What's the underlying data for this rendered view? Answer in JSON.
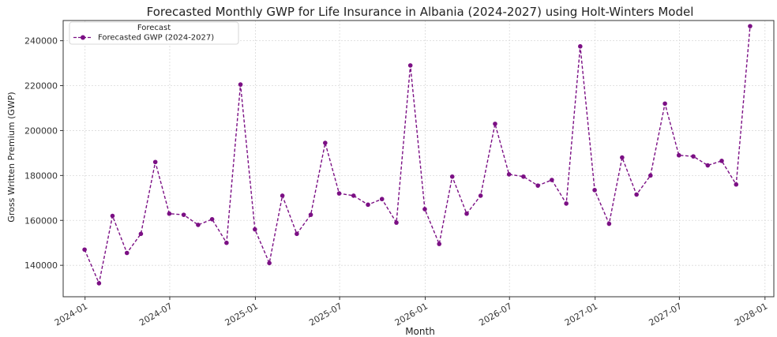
{
  "colors": {
    "series": "#7b0f84",
    "grid": "#d9d9d9",
    "axis": "#333333",
    "background": "#ffffff"
  },
  "chart_data": {
    "type": "line",
    "title": "Forecasted Monthly GWP for Life Insurance in Albania (2024-2027) using Holt-Winters Model",
    "xlabel": "Month",
    "ylabel": "Gross Written Premium (GWP)",
    "x_axis_type": "date",
    "xlim": [
      "2023-11-15",
      "2028-01-20"
    ],
    "ylim": [
      126000,
      249000
    ],
    "grid": true,
    "legend": {
      "title": "Forecast",
      "placement": "upper-left"
    },
    "x_ticks": [
      "2024-01",
      "2024-07",
      "2025-01",
      "2025-07",
      "2026-01",
      "2026-07",
      "2027-01",
      "2027-07",
      "2028-01"
    ],
    "y_ticks": [
      140000,
      160000,
      180000,
      200000,
      220000,
      240000
    ],
    "series": [
      {
        "name": "Forecasted GWP (2024-2027)",
        "color": "#7b0f84",
        "line_style": "dashed",
        "marker": "circle",
        "x": [
          "2023-12-31",
          "2024-01-31",
          "2024-02-29",
          "2024-03-31",
          "2024-04-30",
          "2024-05-31",
          "2024-06-30",
          "2024-07-31",
          "2024-08-31",
          "2024-09-30",
          "2024-10-31",
          "2024-11-30",
          "2024-12-31",
          "2025-01-31",
          "2025-02-28",
          "2025-03-31",
          "2025-04-30",
          "2025-05-31",
          "2025-06-30",
          "2025-07-31",
          "2025-08-31",
          "2025-09-30",
          "2025-10-31",
          "2025-11-30",
          "2025-12-31",
          "2026-01-31",
          "2026-02-28",
          "2026-03-31",
          "2026-04-30",
          "2026-05-31",
          "2026-06-30",
          "2026-07-31",
          "2026-08-31",
          "2026-09-30",
          "2026-10-31",
          "2026-11-30",
          "2026-12-31",
          "2027-01-31",
          "2027-02-28",
          "2027-03-31",
          "2027-04-30",
          "2027-05-31",
          "2027-06-30",
          "2027-07-31",
          "2027-08-31",
          "2027-09-30",
          "2027-10-31",
          "2027-11-30"
        ],
        "values": [
          147000,
          132000,
          162000,
          145500,
          154000,
          186000,
          163000,
          162500,
          158000,
          160500,
          150000,
          220500,
          156000,
          141000,
          171000,
          154000,
          162500,
          194500,
          172000,
          171000,
          167000,
          169500,
          159000,
          229000,
          165000,
          149500,
          179500,
          163000,
          171000,
          203000,
          180500,
          179500,
          175500,
          178000,
          167500,
          237500,
          173500,
          158500,
          188000,
          171500,
          180000,
          212000,
          189000,
          188500,
          184500,
          186500,
          176000,
          246500
        ]
      }
    ]
  }
}
